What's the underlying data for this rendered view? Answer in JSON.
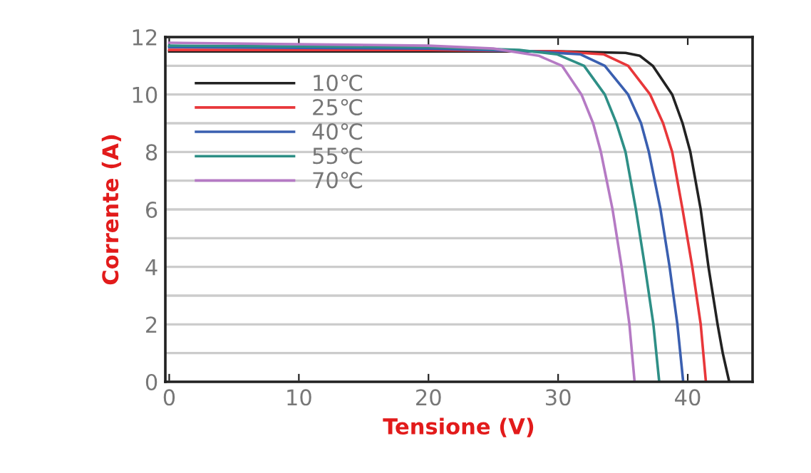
{
  "chart_data": {
    "type": "line",
    "xlabel": "Tensione (V)",
    "ylabel": "Corrente (A)",
    "xlim": [
      -0.3,
      45
    ],
    "ylim": [
      0,
      12
    ],
    "xticks": [
      0,
      10,
      20,
      30,
      40
    ],
    "yticks": [
      0,
      {
        "value": 1,
        "label": null
      },
      2,
      {
        "value": 3,
        "label": null
      },
      4,
      {
        "value": 5,
        "label": null
      },
      6,
      {
        "value": 7,
        "label": null
      },
      8,
      {
        "value": 9,
        "label": null
      },
      10,
      {
        "value": 11,
        "label": null
      },
      12
    ],
    "grid": "y",
    "legend": "top left",
    "marker": "none",
    "line_style": "solid",
    "series": [
      {
        "name": "10℃",
        "color": "#222222",
        "x": [
          0,
          20,
          30,
          35.2,
          36.3,
          37.3,
          38.8,
          39.6,
          40.2,
          41,
          41.6,
          42.3,
          42.7,
          43.2
        ],
        "values": [
          11.5,
          11.5,
          11.5,
          11.45,
          11.35,
          11,
          10,
          9,
          8,
          6,
          4,
          2,
          1,
          0
        ]
      },
      {
        "name": "25℃",
        "color": "#e8373a",
        "x": [
          0,
          20,
          30,
          33.5,
          35.4,
          37.1,
          38.1,
          38.8,
          39.6,
          40.35,
          41,
          41.4
        ],
        "values": [
          11.55,
          11.55,
          11.5,
          11.4,
          11,
          10,
          9,
          8,
          6,
          4,
          2,
          0
        ]
      },
      {
        "name": "40℃",
        "color": "#3a5fb0",
        "x": [
          0,
          20,
          28,
          31.7,
          33.6,
          35.4,
          36.4,
          37,
          37.9,
          38.6,
          39.2,
          39.65
        ],
        "values": [
          11.65,
          11.6,
          11.5,
          11.4,
          11,
          10,
          9,
          8,
          6,
          4,
          2,
          0
        ]
      },
      {
        "name": "55℃",
        "color": "#2e8f86",
        "x": [
          0,
          20,
          27,
          29.9,
          32,
          33.6,
          34.5,
          35.2,
          36,
          36.7,
          37.35,
          37.8
        ],
        "values": [
          11.7,
          11.65,
          11.55,
          11.4,
          11,
          10,
          9,
          8,
          6,
          4,
          2,
          0
        ]
      },
      {
        "name": "70℃",
        "color": "#b57ac4",
        "x": [
          0,
          20,
          25,
          28.5,
          30.3,
          31.8,
          32.7,
          33.3,
          34.2,
          34.9,
          35.5,
          35.9
        ],
        "values": [
          11.8,
          11.7,
          11.6,
          11.35,
          11,
          10,
          9,
          8,
          6,
          4,
          2,
          0
        ]
      }
    ]
  }
}
